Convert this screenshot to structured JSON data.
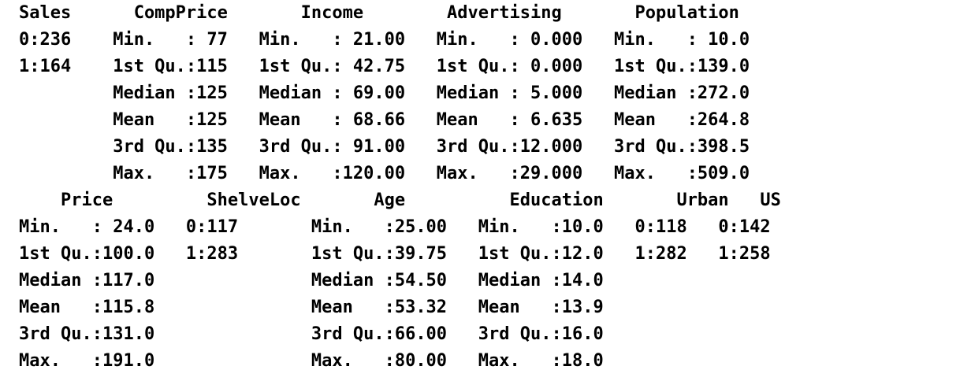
{
  "summary_output": {
    "block1": [
      "Sales      CompPrice       Income        Advertising       Population",
      "0:236    Min.   : 77   Min.   : 21.00   Min.   : 0.000   Min.   : 10.0",
      "1:164    1st Qu.:115   1st Qu.: 42.75   1st Qu.: 0.000   1st Qu.:139.0",
      "         Median :125   Median : 69.00   Median : 5.000   Median :272.0",
      "         Mean   :125   Mean   : 68.66   Mean   : 6.635   Mean   :264.8",
      "         3rd Qu.:135   3rd Qu.: 91.00   3rd Qu.:12.000   3rd Qu.:398.5",
      "         Max.   :175   Max.   :120.00   Max.   :29.000   Max.   :509.0"
    ],
    "block2": [
      "    Price         ShelveLoc       Age          Education       Urban   US",
      "Min.   : 24.0   0:117       Min.   :25.00   Min.   :10.0   0:118   0:142",
      "1st Qu.:100.0   1:283       1st Qu.:39.75   1st Qu.:12.0   1:282   1:258",
      "Median :117.0               Median :54.50   Median :14.0",
      "Mean   :115.8               Mean   :53.32   Mean   :13.9",
      "3rd Qu.:131.0               3rd Qu.:66.00   3rd Qu.:16.0",
      "Max.   :191.0               Max.   :80.00   Max.   :18.0"
    ]
  }
}
